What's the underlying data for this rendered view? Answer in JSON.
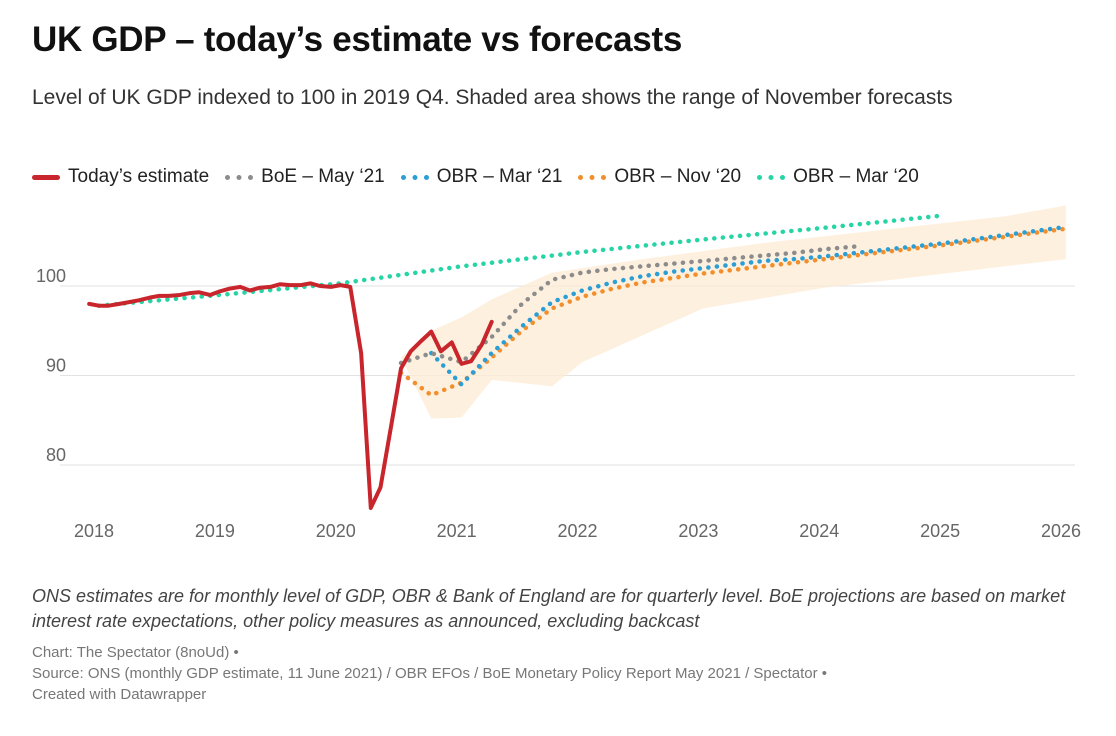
{
  "chart_data": {
    "type": "line",
    "title": "UK GDP – today’s estimate vs forecasts",
    "subtitle": "Level of UK GDP indexed to 100 in 2019 Q4. Shaded area shows the range of November forecasts",
    "x_ticks": [
      "2018",
      "2019",
      "2020",
      "2021",
      "2022",
      "2023",
      "2024",
      "2025",
      "2026"
    ],
    "y_ticks": [
      80,
      90,
      100
    ],
    "xlim": [
      2018,
      2026
    ],
    "ylim": [
      75,
      108
    ],
    "grid": true,
    "legend_position": "top-left",
    "series": [
      {
        "name": "Today’s estimate",
        "color": "#c8252c",
        "style": "solid",
        "points": [
          [
            2017.96,
            98.0
          ],
          [
            2018.04,
            97.8
          ],
          [
            2018.12,
            97.8
          ],
          [
            2018.21,
            98.0
          ],
          [
            2018.29,
            98.2
          ],
          [
            2018.37,
            98.4
          ],
          [
            2018.46,
            98.7
          ],
          [
            2018.54,
            98.9
          ],
          [
            2018.62,
            98.9
          ],
          [
            2018.71,
            99.0
          ],
          [
            2018.79,
            99.2
          ],
          [
            2018.87,
            99.3
          ],
          [
            2018.96,
            99.0
          ],
          [
            2019.04,
            99.4
          ],
          [
            2019.12,
            99.7
          ],
          [
            2019.21,
            99.9
          ],
          [
            2019.29,
            99.5
          ],
          [
            2019.37,
            99.8
          ],
          [
            2019.46,
            99.9
          ],
          [
            2019.54,
            100.2
          ],
          [
            2019.62,
            100.1
          ],
          [
            2019.71,
            100.1
          ],
          [
            2019.79,
            100.3
          ],
          [
            2019.87,
            100.0
          ],
          [
            2019.96,
            99.9
          ],
          [
            2020.04,
            100.1
          ],
          [
            2020.12,
            99.9
          ],
          [
            2020.21,
            92.5
          ],
          [
            2020.29,
            75.2
          ],
          [
            2020.37,
            77.5
          ],
          [
            2020.46,
            84.5
          ],
          [
            2020.54,
            90.8
          ],
          [
            2020.62,
            92.7
          ],
          [
            2020.71,
            93.9
          ],
          [
            2020.79,
            94.9
          ],
          [
            2020.87,
            92.7
          ],
          [
            2020.96,
            93.7
          ],
          [
            2021.04,
            91.3
          ],
          [
            2021.12,
            91.6
          ],
          [
            2021.21,
            93.5
          ],
          [
            2021.29,
            96.0
          ]
        ]
      },
      {
        "name": "BoE – May ‘21",
        "color": "#8c8c8c",
        "style": "dotted",
        "points": [
          [
            2020.54,
            91.4
          ],
          [
            2020.79,
            92.5
          ],
          [
            2021.04,
            91.5
          ],
          [
            2021.29,
            94.3
          ],
          [
            2021.54,
            98.0
          ],
          [
            2021.79,
            100.7
          ],
          [
            2022.04,
            101.5
          ],
          [
            2022.29,
            101.9
          ],
          [
            2022.54,
            102.2
          ],
          [
            2022.79,
            102.5
          ],
          [
            2023.04,
            102.8
          ],
          [
            2023.29,
            103.1
          ],
          [
            2023.54,
            103.4
          ],
          [
            2023.79,
            103.7
          ],
          [
            2024.04,
            104.1
          ],
          [
            2024.29,
            104.4
          ]
        ]
      },
      {
        "name": "OBR – Mar ‘21",
        "color": "#2b9ed6",
        "style": "dotted",
        "points": [
          [
            2020.79,
            92.5
          ],
          [
            2021.04,
            89.0
          ],
          [
            2021.29,
            92.5
          ],
          [
            2021.54,
            95.5
          ],
          [
            2021.79,
            98.2
          ],
          [
            2022.04,
            99.5
          ],
          [
            2022.29,
            100.4
          ],
          [
            2022.54,
            101.1
          ],
          [
            2022.79,
            101.6
          ],
          [
            2023.04,
            102.0
          ],
          [
            2023.29,
            102.4
          ],
          [
            2023.54,
            102.8
          ],
          [
            2023.79,
            103.0
          ],
          [
            2024.04,
            103.3
          ],
          [
            2025.04,
            104.8
          ],
          [
            2026.04,
            106.6
          ]
        ]
      },
      {
        "name": "OBR – Nov ‘20",
        "color": "#f28e2b",
        "style": "dotted",
        "points": [
          [
            2020.54,
            90.3
          ],
          [
            2020.79,
            87.8
          ],
          [
            2021.04,
            89.2
          ],
          [
            2021.29,
            92.0
          ],
          [
            2021.54,
            95.0
          ],
          [
            2021.79,
            97.5
          ],
          [
            2022.04,
            98.8
          ],
          [
            2022.29,
            99.7
          ],
          [
            2022.54,
            100.4
          ],
          [
            2022.79,
            100.9
          ],
          [
            2023.04,
            101.4
          ],
          [
            2023.29,
            101.8
          ],
          [
            2023.54,
            102.2
          ],
          [
            2023.79,
            102.6
          ],
          [
            2024.04,
            103.0
          ],
          [
            2025.04,
            104.6
          ],
          [
            2026.04,
            106.4
          ]
        ]
      },
      {
        "name": "OBR – Mar ‘20",
        "color": "#26d4a6",
        "style": "dotted",
        "points": [
          [
            2018.04,
            97.8
          ],
          [
            2019.04,
            99.0
          ],
          [
            2020.04,
            100.3
          ],
          [
            2021.04,
            102.2
          ],
          [
            2022.04,
            103.8
          ],
          [
            2023.04,
            105.2
          ],
          [
            2024.04,
            106.5
          ],
          [
            2025.04,
            107.9
          ]
        ]
      }
    ],
    "range_band": {
      "color": "#fdebd3",
      "upper": [
        [
          2020.54,
          92.0
        ],
        [
          2020.79,
          95.0
        ],
        [
          2021.04,
          96.5
        ],
        [
          2021.29,
          98.5
        ],
        [
          2021.79,
          101.5
        ],
        [
          2022.54,
          103.0
        ],
        [
          2023.54,
          104.8
        ],
        [
          2024.54,
          106.3
        ],
        [
          2025.54,
          107.8
        ],
        [
          2026.04,
          109.0
        ]
      ],
      "lower": [
        [
          2026.04,
          103.0
        ],
        [
          2025.04,
          101.4
        ],
        [
          2024.04,
          99.8
        ],
        [
          2023.04,
          97.5
        ],
        [
          2022.04,
          91.5
        ],
        [
          2021.79,
          88.8
        ],
        [
          2021.29,
          89.5
        ],
        [
          2021.04,
          85.3
        ],
        [
          2020.79,
          85.2
        ]
      ]
    }
  },
  "notes": "ONS estimates are for monthly level of GDP, OBR & Bank of England are for quarterly level. BoE projections are based on market interest rate expectations, other policy measures as announced, excluding backcast",
  "footer": {
    "chart_credit": "Chart: The Spectator (8noUd) •",
    "source": "Source: ONS (monthly GDP estimate, 11 June 2021) / OBR EFOs / BoE Monetary Policy Report May 2021 / Spectator •",
    "created_with": "Created with Datawrapper"
  }
}
